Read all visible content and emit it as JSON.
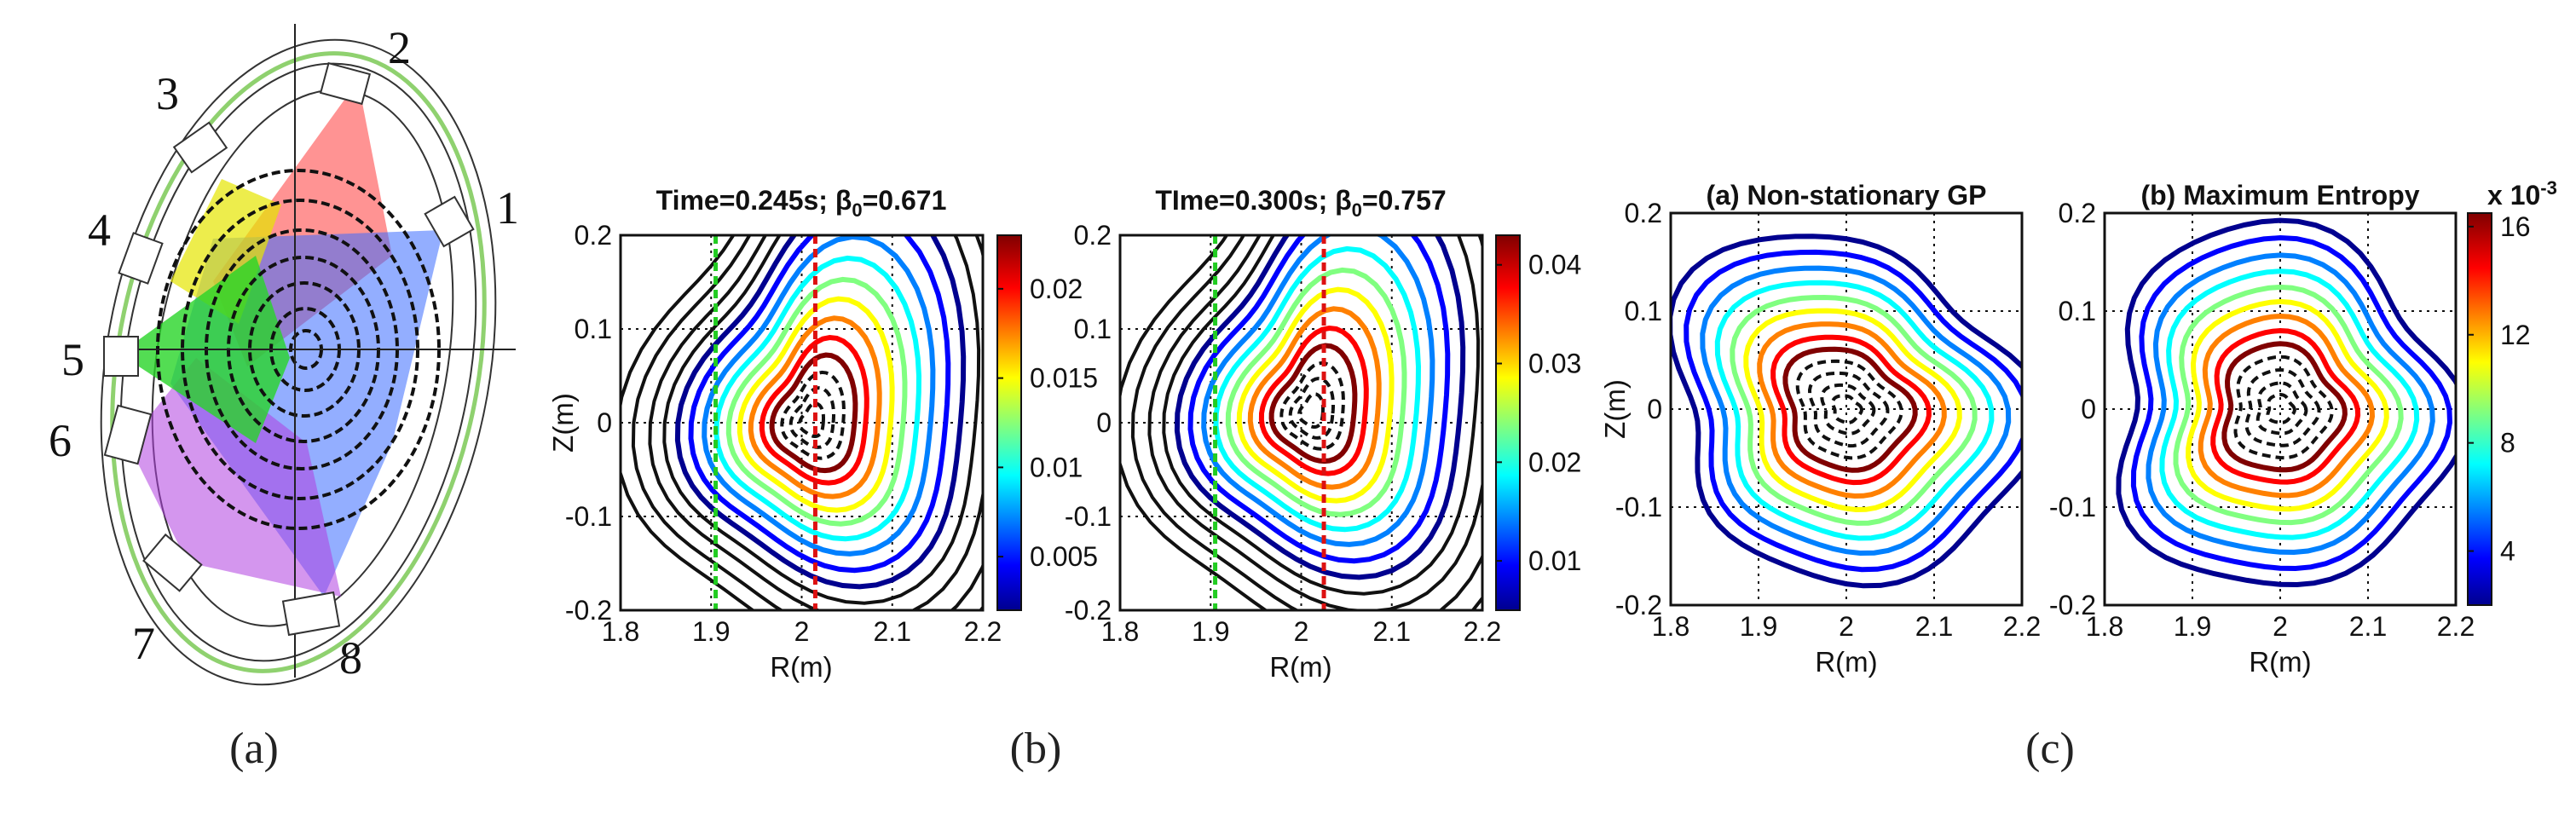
{
  "captions": [
    "(a)",
    "(b)",
    "(c)"
  ],
  "tokamak": {
    "ports": [
      "1",
      "2",
      "3",
      "4",
      "5",
      "6",
      "7",
      "8"
    ]
  },
  "colors": {
    "jet": [
      "#00008f",
      "#0000ff",
      "#0080ff",
      "#00ffff",
      "#80ff80",
      "#ffff00",
      "#ff8000",
      "#ff0000",
      "#800000"
    ],
    "green_line": "#22cc22",
    "red_line": "#dd1111",
    "vessel": "#8fd16f"
  },
  "chart_data": [
    {
      "type": "contour",
      "title_prefix": "Time=0.245s; ",
      "title_beta": "β",
      "title_sub": "0",
      "title_value": "=0.671",
      "xlabel": "R(m)",
      "ylabel": "Z(m)",
      "xlim": [
        1.8,
        2.2
      ],
      "ylim": [
        -0.2,
        0.2
      ],
      "xticks": [
        "1.8",
        "1.9",
        "2",
        "2.1",
        "2.2"
      ],
      "yticks": [
        "0.2",
        "0.1",
        "0",
        "-0.1",
        "-0.2"
      ],
      "colorbar": {
        "min": 0.002,
        "max": 0.023,
        "ticks": [
          "0.02",
          "0.015",
          "0.01",
          "0.005"
        ],
        "tick_values": [
          0.02,
          0.015,
          0.01,
          0.005
        ],
        "exponent": ""
      },
      "vlines": [
        1.905,
        2.015
      ],
      "center": [
        2.01,
        0.0
      ]
    },
    {
      "type": "contour",
      "title_prefix": "TIme=0.300s; ",
      "title_beta": "β",
      "title_sub": "0",
      "title_value": "=0.757",
      "xlabel": "R(m)",
      "ylabel": "",
      "xlim": [
        1.8,
        2.2
      ],
      "ylim": [
        -0.2,
        0.2
      ],
      "xticks": [
        "1.8",
        "1.9",
        "2",
        "2.1",
        "2.2"
      ],
      "yticks": [
        "0.2",
        "0.1",
        "0",
        "-0.1",
        "-0.2"
      ],
      "colorbar": {
        "min": 0.005,
        "max": 0.043,
        "ticks": [
          "0.04",
          "0.03",
          "0.02",
          "0.01"
        ],
        "tick_values": [
          0.04,
          0.03,
          0.02,
          0.01
        ],
        "exponent": ""
      },
      "vlines": [
        1.905,
        2.025
      ],
      "center": [
        2.01,
        0.01
      ]
    },
    {
      "type": "contour",
      "title_prefix": "(a) Non-stationary GP",
      "title_beta": "",
      "title_sub": "",
      "title_value": "",
      "xlabel": "R(m)",
      "ylabel": "Z(m)",
      "xlim": [
        1.8,
        2.2
      ],
      "ylim": [
        -0.2,
        0.2
      ],
      "xticks": [
        "1.8",
        "1.9",
        "2",
        "2.1",
        "2.2"
      ],
      "yticks": [
        "0.2",
        "0.1",
        "0",
        "-0.1",
        "-0.2"
      ],
      "colorbar": null,
      "vlines": [],
      "center": [
        2.0,
        0.0
      ]
    },
    {
      "type": "contour",
      "title_prefix": "(b) Maximum Entropy",
      "title_beta": "",
      "title_sub": "",
      "title_value": "",
      "xlabel": "R(m)",
      "ylabel": "",
      "xlim": [
        1.8,
        2.2
      ],
      "ylim": [
        -0.2,
        0.2
      ],
      "xticks": [
        "1.8",
        "1.9",
        "2",
        "2.1",
        "2.2"
      ],
      "yticks": [
        "0.2",
        "0.1",
        "0",
        "-0.1",
        "-0.2"
      ],
      "colorbar": {
        "min": 0.002,
        "max": 0.0165,
        "ticks": [
          "16",
          "12",
          "8",
          "4"
        ],
        "tick_values": [
          0.016,
          0.012,
          0.008,
          0.004
        ],
        "exponent": "x 10",
        "exponent_power": "-3"
      },
      "vlines": [],
      "center": [
        2.0,
        0.0
      ]
    }
  ]
}
